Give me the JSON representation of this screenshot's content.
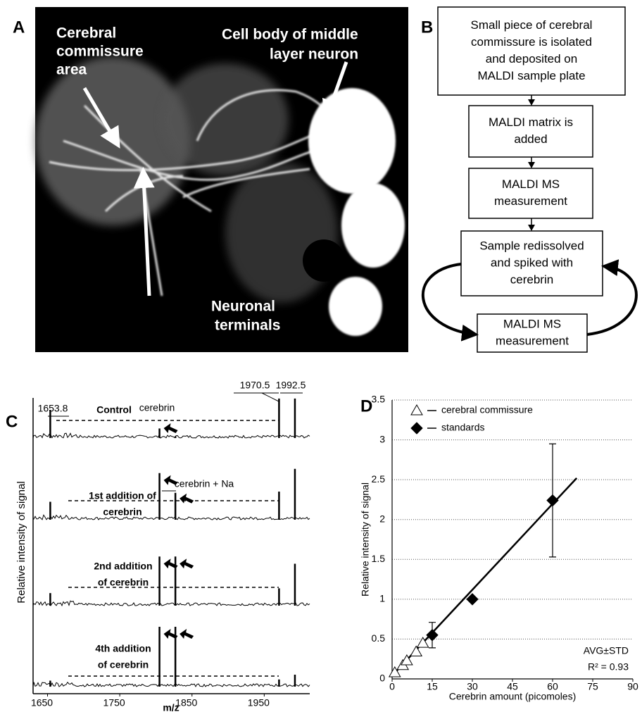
{
  "panel_a": {
    "letter": "A",
    "commissure": [
      "Cerebral",
      "commissure",
      "area"
    ],
    "cell_body": [
      "Cell body of middle",
      "layer neuron"
    ],
    "terminals": [
      "Neuronal",
      "terminals"
    ]
  },
  "panel_b": {
    "letter": "B",
    "steps": [
      [
        "Small piece of cerebral",
        "commissure is isolated",
        "and deposited on",
        "MALDI sample plate"
      ],
      [
        "MALDI matrix is",
        "added"
      ],
      [
        "MALDI MS",
        "measurement"
      ],
      [
        "Sample redissolved",
        "and spiked with",
        "cerebrin"
      ],
      [
        "MALDI MS",
        "measurement"
      ]
    ]
  },
  "chart_data": [
    {
      "type": "spectrum",
      "letter": "C",
      "x_label": "m/z",
      "y_label": "Relative intensity of signal",
      "xlim": [
        1630,
        2013
      ],
      "xticks": [
        1650,
        1750,
        1850,
        1950
      ],
      "peak_mz": [
        1653.8,
        1805,
        1827,
        1970.5,
        1992.5
      ],
      "annotations": [
        "cerebrin",
        "cerebrin + Na"
      ],
      "traces": [
        {
          "name": [
            "Control"
          ],
          "heights": [
            0.47,
            0.16,
            0.03,
            0.66,
            0.66
          ]
        },
        {
          "name": [
            "1st addition of",
            "cerebrin"
          ],
          "heights": [
            0.3,
            0.78,
            0.45,
            0.47,
            0.85
          ]
        },
        {
          "name": [
            "2nd addition",
            "of cerebrin"
          ],
          "heights": [
            0.21,
            0.82,
            0.82,
            0.29,
            0.7
          ]
        },
        {
          "name": [
            "4th addition",
            "of cerebrin"
          ],
          "heights": [
            0.1,
            1.0,
            1.0,
            0.12,
            0.2
          ]
        }
      ]
    },
    {
      "type": "scatter",
      "letter": "D",
      "x_label": "Cerebrin amount (picomoles)",
      "y_label": "Relative intensity of signal",
      "xlim": [
        0,
        90
      ],
      "xticks": [
        0,
        15,
        30,
        45,
        60,
        75,
        90
      ],
      "ylim": [
        0,
        3.5
      ],
      "yticks": [
        0,
        0.5,
        1,
        1.5,
        2,
        2.5,
        3,
        3.5
      ],
      "grid": true,
      "series": [
        {
          "name": "cerebral commissure",
          "marker": "triangle",
          "x": [
            1,
            4,
            5.5,
            9,
            11.5
          ],
          "values": [
            0.08,
            0.17,
            0.23,
            0.34,
            0.45
          ]
        },
        {
          "name": "standards",
          "marker": "diamond",
          "x": [
            15,
            30,
            60
          ],
          "values": [
            0.55,
            1.0,
            2.24
          ],
          "errors": [
            0.16,
            null,
            0.71
          ]
        }
      ],
      "trendline": {
        "x": [
          0,
          69
        ],
        "values": [
          0.04,
          2.52
        ]
      },
      "annotations": [
        "AVG±STD",
        "R² = 0.93"
      ]
    }
  ]
}
